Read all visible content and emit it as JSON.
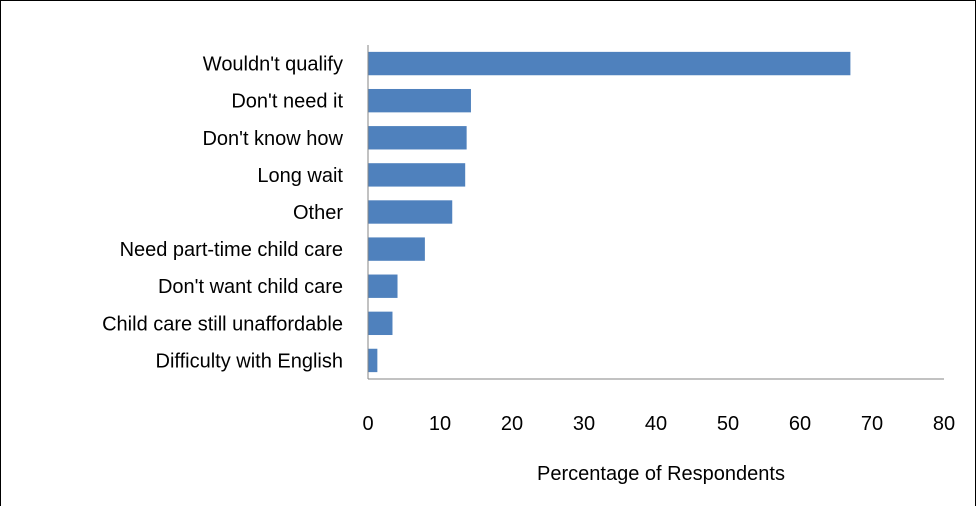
{
  "chart_data": {
    "type": "bar",
    "orientation": "horizontal",
    "categories": [
      "Wouldn't qualify",
      "Don't need it",
      "Don't know how",
      "Long wait ",
      "Other",
      "Need part-time child care",
      "Don't want child care",
      "Child care still unaffordable",
      "Difficulty with English"
    ],
    "values": [
      67,
      14.3,
      13.7,
      13.5,
      11.7,
      7.9,
      4.1,
      3.4,
      1.3
    ],
    "title": "",
    "xlabel": "Percentage of Respondents",
    "ylabel": "",
    "xlim": [
      0,
      80
    ],
    "xticks": [
      0,
      10,
      20,
      30,
      40,
      50,
      60,
      70,
      80
    ],
    "grid": false,
    "legend": "none",
    "bar_color": "#4F81BD"
  }
}
